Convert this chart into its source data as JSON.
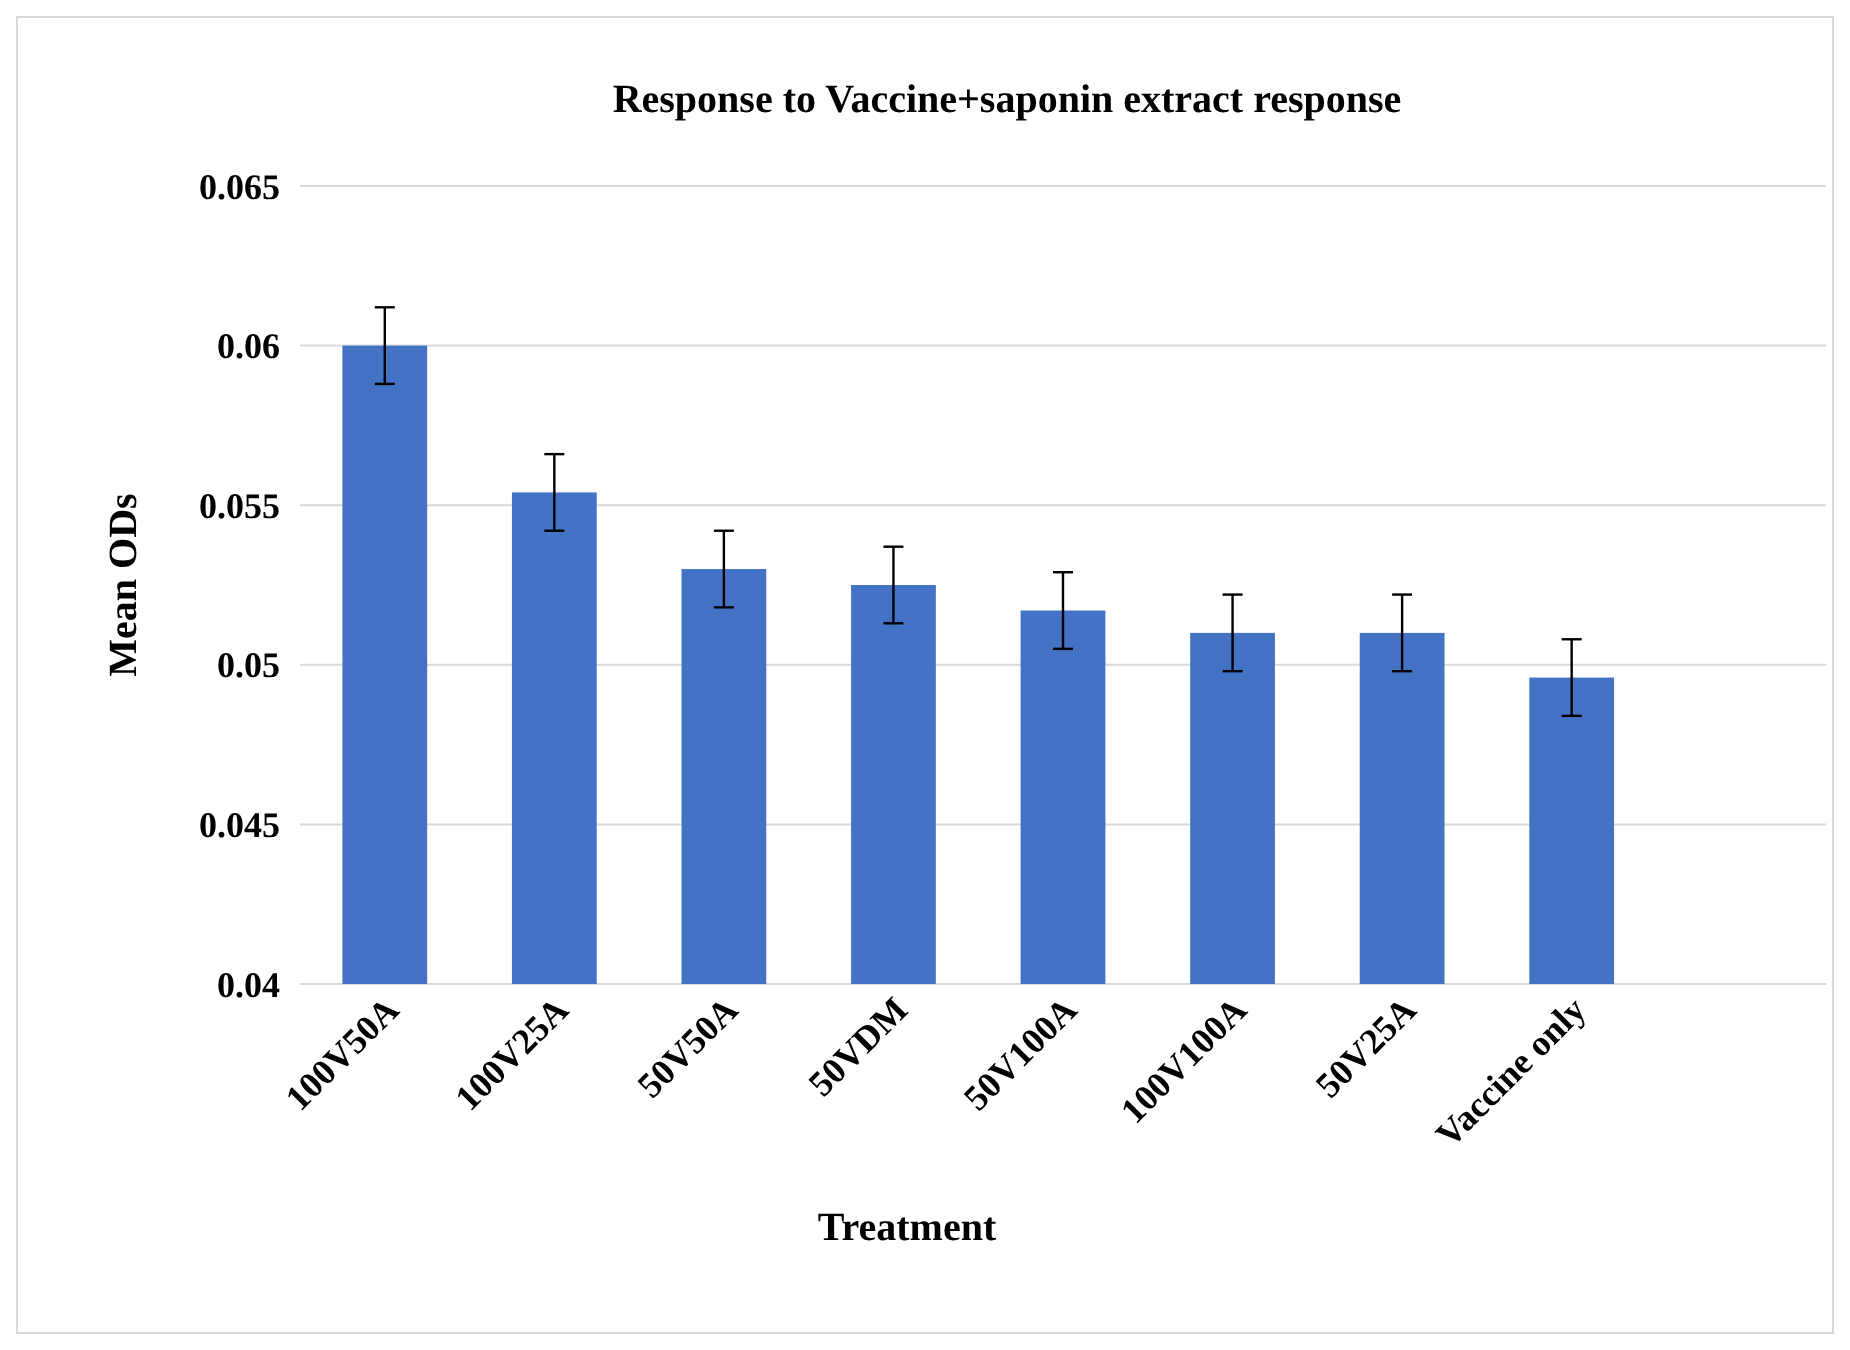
{
  "chart_data": {
    "type": "bar",
    "title": "Response to Vaccine+saponin extract response",
    "xlabel": "Treatment",
    "ylabel": "Mean ODs",
    "categories": [
      "100V50A",
      "100V25A",
      "50V50A",
      "50VDM",
      "50V100A",
      "100V100A",
      "50V25A",
      "Vaccine only",
      null
    ],
    "values": [
      0.06,
      0.0554,
      0.053,
      0.0525,
      0.0517,
      0.051,
      0.051,
      0.0496,
      null
    ],
    "errors": [
      0.0012,
      0.0012,
      0.0012,
      0.0012,
      0.0012,
      0.0012,
      0.0012,
      0.0012,
      null
    ],
    "color": "#4472c4",
    "ylim": [
      0.04,
      0.065
    ],
    "yticks": [
      0.04,
      0.045,
      0.05,
      0.055,
      0.06,
      0.065
    ],
    "grid": "y"
  }
}
